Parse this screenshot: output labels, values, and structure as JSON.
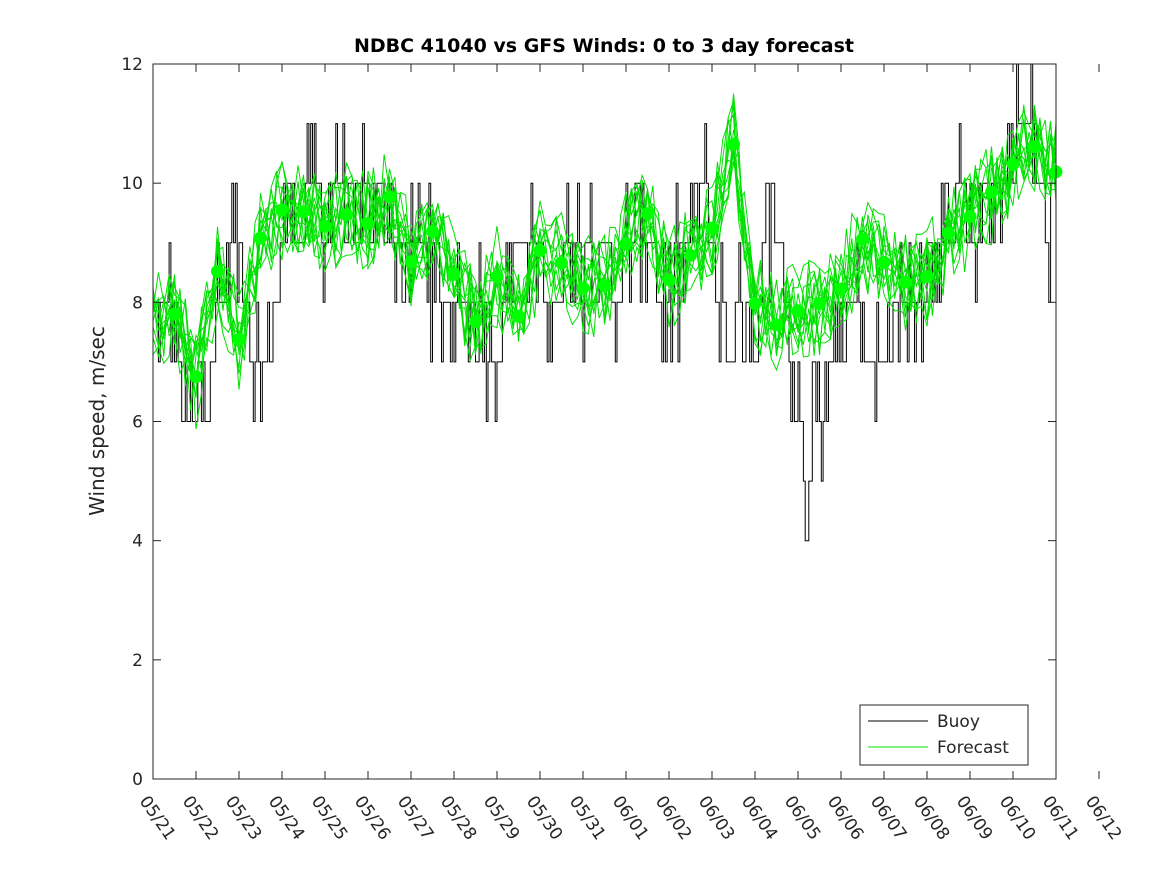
{
  "chart_data": {
    "type": "line",
    "title": "NDBC 41040 vs GFS Winds: 0 to 3 day forecast",
    "xlabel": "",
    "ylabel": "Wind speed, m/sec",
    "x_tick_labels": [
      "05/21",
      "05/22",
      "05/23",
      "05/24",
      "05/25",
      "05/26",
      "05/27",
      "05/28",
      "05/29",
      "05/30",
      "05/31",
      "06/01",
      "06/02",
      "06/03",
      "06/04",
      "06/05",
      "06/06",
      "06/07",
      "06/08",
      "06/09",
      "06/10",
      "06/11",
      "06/12"
    ],
    "y_ticks": [
      0,
      2,
      4,
      6,
      8,
      10,
      12
    ],
    "xlim_days": [
      0,
      21
    ],
    "ylim": [
      0,
      12
    ],
    "grid": false,
    "legend": {
      "placement": "bottom-right",
      "entries": [
        {
          "label": "Buoy",
          "color": "#000000"
        },
        {
          "label": "Forecast",
          "color": "#00e000"
        }
      ]
    },
    "colors": {
      "buoy": "#000000",
      "forecast": "#00e000",
      "marker": "#00ff00"
    },
    "buoy_anchor_values": [
      8,
      8,
      8,
      7,
      6,
      6,
      7,
      7,
      8,
      9,
      9,
      8,
      7,
      7,
      8,
      9,
      10,
      9,
      10,
      10,
      9,
      10,
      10,
      9,
      10,
      10,
      9,
      10,
      9,
      8,
      9,
      9,
      9,
      8,
      8,
      8,
      8,
      8,
      8,
      7,
      7,
      8,
      9,
      9,
      9,
      8,
      8,
      8,
      9,
      9,
      9,
      9,
      8,
      9,
      8,
      9,
      9,
      9,
      9,
      8,
      8,
      8,
      9,
      9,
      10,
      9,
      8,
      7,
      8,
      8,
      7,
      9,
      10,
      9,
      7,
      6,
      5,
      7,
      6,
      7,
      8,
      8,
      8,
      7,
      7,
      7,
      8,
      8,
      8,
      8,
      9,
      9,
      9,
      9,
      10,
      9,
      9,
      10,
      10,
      10,
      11,
      11,
      11,
      10,
      9,
      9
    ],
    "forecast_dots": [
      {
        "x": 0.5,
        "y": 7.8
      },
      {
        "x": 1.0,
        "y": 6.75
      },
      {
        "x": 1.5,
        "y": 8.52
      },
      {
        "x": 2.0,
        "y": 7.38
      },
      {
        "x": 2.5,
        "y": 9.08
      },
      {
        "x": 3.0,
        "y": 9.55
      },
      {
        "x": 3.5,
        "y": 9.52
      },
      {
        "x": 4.0,
        "y": 9.28
      },
      {
        "x": 4.5,
        "y": 9.47
      },
      {
        "x": 5.0,
        "y": 9.32
      },
      {
        "x": 5.5,
        "y": 9.77
      },
      {
        "x": 6.0,
        "y": 8.68
      },
      {
        "x": 6.5,
        "y": 9.19
      },
      {
        "x": 7.0,
        "y": 8.47
      },
      {
        "x": 7.5,
        "y": 7.68
      },
      {
        "x": 8.0,
        "y": 8.43
      },
      {
        "x": 8.5,
        "y": 7.77
      },
      {
        "x": 9.0,
        "y": 8.87
      },
      {
        "x": 9.5,
        "y": 8.66
      },
      {
        "x": 10.0,
        "y": 8.24
      },
      {
        "x": 10.5,
        "y": 8.28
      },
      {
        "x": 11.0,
        "y": 8.98
      },
      {
        "x": 11.5,
        "y": 9.49
      },
      {
        "x": 12.0,
        "y": 8.38
      },
      {
        "x": 12.5,
        "y": 8.79
      },
      {
        "x": 13.0,
        "y": 9.24
      },
      {
        "x": 13.5,
        "y": 10.65
      },
      {
        "x": 14.0,
        "y": 7.98
      },
      {
        "x": 14.5,
        "y": 7.62
      },
      {
        "x": 15.0,
        "y": 7.86
      },
      {
        "x": 15.5,
        "y": 7.98
      },
      {
        "x": 16.0,
        "y": 8.22
      },
      {
        "x": 16.5,
        "y": 9.06
      },
      {
        "x": 17.0,
        "y": 8.67
      },
      {
        "x": 17.5,
        "y": 8.34
      },
      {
        "x": 18.0,
        "y": 8.43
      },
      {
        "x": 18.5,
        "y": 9.16
      },
      {
        "x": 19.0,
        "y": 9.44
      },
      {
        "x": 19.5,
        "y": 9.85
      },
      {
        "x": 20.0,
        "y": 10.32
      },
      {
        "x": 20.5,
        "y": 10.61
      },
      {
        "x": 21.0,
        "y": 10.19
      }
    ]
  }
}
